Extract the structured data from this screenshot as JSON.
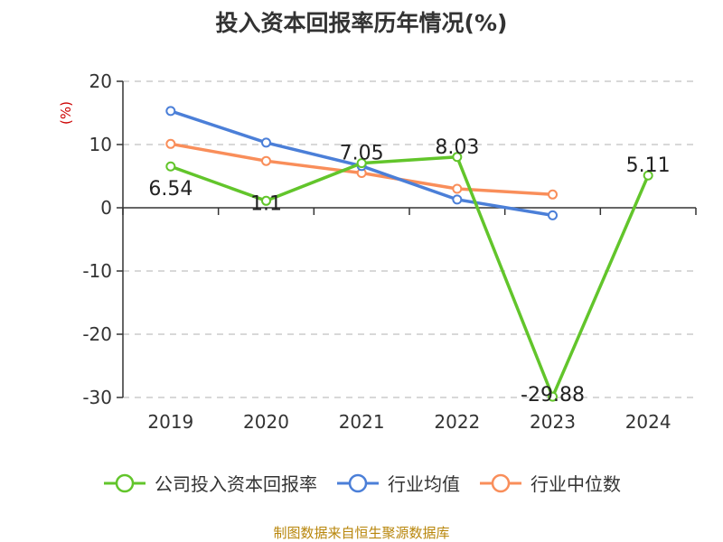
{
  "title": "投入资本回报率历年情况(%)",
  "source": "制图数据来自恒生聚源数据库",
  "colors": {
    "company": "#62c52b",
    "industry_avg": "#4b7fd8",
    "industry_median": "#f98e5a",
    "axis": "#333333",
    "grid": "#cccccc",
    "unit": "#cc0000"
  },
  "chart_data": {
    "type": "line",
    "title": "投入资本回报率历年情况(%)",
    "ylabel": "(%)",
    "categories": [
      "2019",
      "2020",
      "2021",
      "2022",
      "2023",
      "2024"
    ],
    "yticks": [
      20,
      10,
      0,
      -10,
      -20,
      -30
    ],
    "ylim": [
      -30,
      20
    ],
    "grid": "horizontal-dashed",
    "legend_position": "bottom",
    "series": [
      {
        "name": "公司投入资本回报率",
        "color_key": "company",
        "values": [
          6.54,
          1.1,
          7.05,
          8.03,
          -29.88,
          5.11
        ],
        "labels": [
          "6.54",
          "1.1",
          "7.05",
          "8.03",
          "-29.88",
          "5.11"
        ]
      },
      {
        "name": "行业均值",
        "color_key": "industry_avg",
        "values": [
          15.3,
          10.3,
          6.6,
          1.3,
          -1.2,
          null
        ]
      },
      {
        "name": "行业中位数",
        "color_key": "industry_median",
        "values": [
          10.1,
          7.4,
          5.5,
          3.0,
          2.1,
          null
        ]
      }
    ]
  }
}
